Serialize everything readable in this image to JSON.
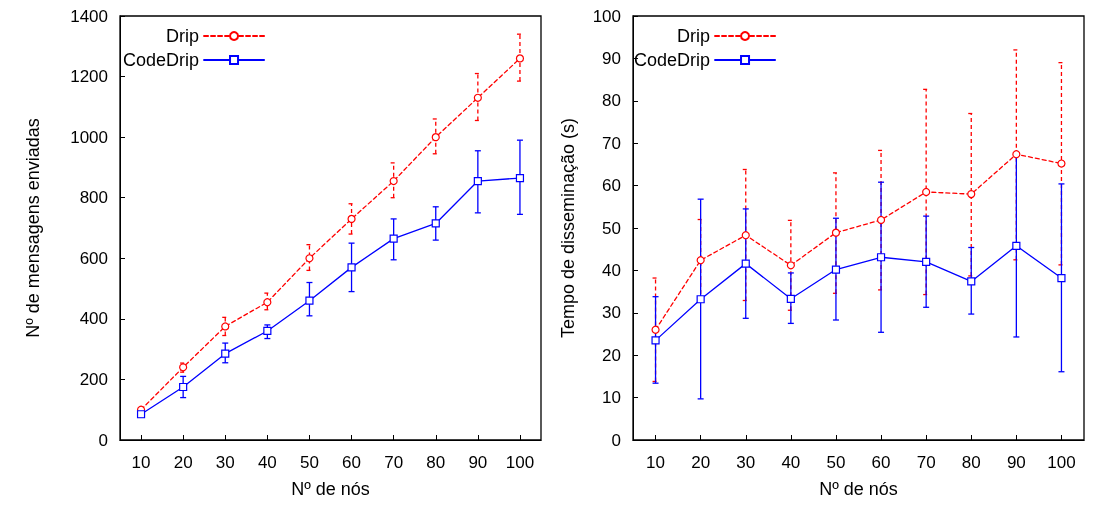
{
  "chart_data": [
    {
      "type": "line",
      "xlabel": "Nº de nós",
      "ylabel": "Nº de mensagens enviadas",
      "x": [
        10,
        20,
        30,
        40,
        50,
        60,
        70,
        80,
        90,
        100
      ],
      "xlim": [
        5,
        105
      ],
      "xticks": [
        10,
        20,
        30,
        40,
        50,
        60,
        70,
        80,
        90,
        100
      ],
      "ylim": [
        0,
        1400
      ],
      "yticks": [
        0,
        200,
        400,
        600,
        800,
        1000,
        1200,
        1400
      ],
      "grid": false,
      "legend": "top left",
      "series": [
        {
          "name": "Drip",
          "color": "#ff0000",
          "marker": "circle",
          "line_style": "dashed",
          "values": [
            100,
            240,
            375,
            455,
            600,
            730,
            855,
            1000,
            1130,
            1260
          ],
          "errors": [
            null,
            [
              224,
              254
            ],
            [
              345,
              405
            ],
            [
              430,
              485
            ],
            [
              560,
              645
            ],
            [
              680,
              780
            ],
            [
              800,
              915
            ],
            [
              945,
              1060
            ],
            [
              1055,
              1210
            ],
            [
              1185,
              1340
            ]
          ]
        },
        {
          "name": "CodeDrip",
          "color": "#0000ff",
          "marker": "square",
          "line_style": "solid",
          "values": [
            85,
            175,
            285,
            360,
            460,
            570,
            665,
            715,
            855,
            865
          ],
          "errors": [
            [
              75,
              95
            ],
            [
              140,
              210
            ],
            [
              255,
              320
            ],
            [
              335,
              380
            ],
            [
              410,
              520
            ],
            [
              490,
              650
            ],
            [
              595,
              730
            ],
            [
              660,
              770
            ],
            [
              750,
              955
            ],
            [
              745,
              990
            ]
          ]
        }
      ]
    },
    {
      "type": "line",
      "xlabel": "Nº de nós",
      "ylabel": "Tempo de disseminação (s)",
      "x": [
        10,
        20,
        30,
        40,
        50,
        60,
        70,
        80,
        90,
        100
      ],
      "xlim": [
        5,
        105
      ],
      "xticks": [
        10,
        20,
        30,
        40,
        50,
        60,
        70,
        80,
        90,
        100
      ],
      "ylim": [
        0,
        100
      ],
      "yticks": [
        0,
        10,
        20,
        30,
        40,
        50,
        60,
        70,
        80,
        90,
        100
      ],
      "grid": false,
      "legend": "top left",
      "series": [
        {
          "name": "Drip",
          "color": "#ff0000",
          "marker": "circle",
          "line_style": "dashed",
          "values": [
            26,
            42.4,
            48.3,
            41.2,
            48.9,
            51.9,
            58.5,
            58,
            67.4,
            65.2
          ],
          "errors": [
            [
              13.8,
              38.2
            ],
            [
              32.8,
              52
            ],
            [
              32.9,
              63.8
            ],
            [
              30.6,
              51.8
            ],
            [
              34.6,
              63
            ],
            [
              35.4,
              68.3
            ],
            [
              34.3,
              82.7
            ],
            [
              38.7,
              77
            ],
            [
              42.5,
              92
            ],
            [
              41.3,
              89
            ]
          ]
        },
        {
          "name": "CodeDrip",
          "color": "#0000ff",
          "marker": "square",
          "line_style": "solid",
          "values": [
            23.5,
            33.2,
            41.6,
            33.3,
            40.2,
            43.1,
            42,
            37.4,
            45.8,
            38.2
          ],
          "errors": [
            [
              13.4,
              33.8
            ],
            [
              9.7,
              56.8
            ],
            [
              28.7,
              54.5
            ],
            [
              27.5,
              39.4
            ],
            [
              28.3,
              52.3
            ],
            [
              25.4,
              60.8
            ],
            [
              31.3,
              52.8
            ],
            [
              29.7,
              45.4
            ],
            [
              24.3,
              67.4
            ],
            [
              16.1,
              60.4
            ]
          ]
        }
      ]
    }
  ]
}
